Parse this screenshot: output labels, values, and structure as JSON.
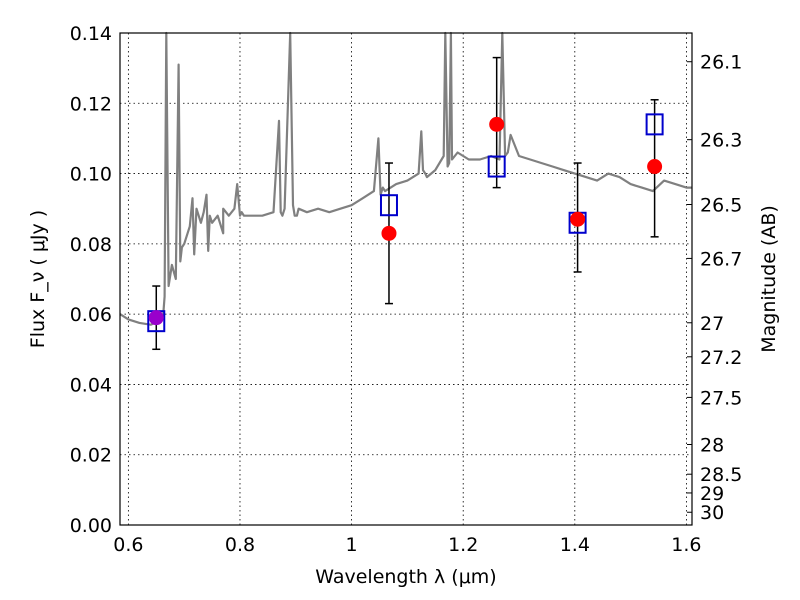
{
  "chart_data": {
    "type": "scatter",
    "xlabel": "Wavelength  λ (μm)",
    "ylabel": "Flux  F_ν  ( μJy )",
    "y2label": "Magnitude (AB)",
    "xlim": [
      0.585,
      1.61
    ],
    "ylim": [
      0.0,
      0.14
    ],
    "x_ticks": [
      "0.6",
      "0.8",
      "1",
      "1.2",
      "1.4",
      "1.6"
    ],
    "x_tick_values": [
      0.6,
      0.8,
      1.0,
      1.2,
      1.4,
      1.6
    ],
    "y_ticks": [
      "0.00",
      "0.02",
      "0.04",
      "0.06",
      "0.08",
      "0.10",
      "0.12",
      "0.14"
    ],
    "y_tick_values": [
      0.0,
      0.02,
      0.04,
      0.06,
      0.08,
      0.1,
      0.12,
      0.14
    ],
    "y2_ticks": [
      "26.1",
      "26.3",
      "26.5",
      "26.7",
      "27",
      "27.2",
      "27.5",
      "28",
      "28.5",
      "29",
      "30"
    ],
    "y2_tick_values": [
      26.1,
      26.3,
      26.5,
      26.7,
      27.0,
      27.2,
      27.5,
      28.0,
      28.5,
      29.0,
      30.0
    ],
    "grid": true,
    "colors": {
      "spectrum": "#808080",
      "model_points": "#ff0000",
      "observed_points": "#0000cc",
      "overlap_point": "#9900cc",
      "error_bars": "#000000"
    },
    "spectrum": {
      "x": [
        0.585,
        0.6,
        0.62,
        0.64,
        0.655,
        0.662,
        0.665,
        0.668,
        0.672,
        0.678,
        0.685,
        0.69,
        0.693,
        0.696,
        0.7,
        0.71,
        0.715,
        0.718,
        0.722,
        0.73,
        0.735,
        0.74,
        0.743,
        0.746,
        0.75,
        0.76,
        0.77,
        0.77,
        0.78,
        0.79,
        0.795,
        0.8,
        0.803,
        0.807,
        0.82,
        0.84,
        0.86,
        0.87,
        0.873,
        0.876,
        0.88,
        0.89,
        0.895,
        0.898,
        0.902,
        0.905,
        0.92,
        0.94,
        0.96,
        0.98,
        1.0,
        1.02,
        1.04,
        1.048,
        1.052,
        1.056,
        1.06,
        1.08,
        1.1,
        1.12,
        1.125,
        1.128,
        1.132,
        1.135,
        1.15,
        1.165,
        1.168,
        1.172,
        1.175,
        1.178,
        1.18,
        1.185,
        1.19,
        1.2,
        1.21,
        1.23,
        1.25,
        1.265,
        1.27,
        1.275,
        1.28,
        1.285,
        1.3,
        1.32,
        1.34,
        1.36,
        1.38,
        1.4,
        1.42,
        1.44,
        1.46,
        1.48,
        1.5,
        1.52,
        1.54,
        1.56,
        1.58,
        1.6,
        1.61
      ],
      "y": [
        0.06,
        0.0585,
        0.0575,
        0.057,
        0.058,
        0.059,
        0.065,
        0.14,
        0.068,
        0.074,
        0.07,
        0.131,
        0.075,
        0.079,
        0.08,
        0.085,
        0.093,
        0.077,
        0.09,
        0.086,
        0.089,
        0.094,
        0.078,
        0.088,
        0.086,
        0.088,
        0.083,
        0.09,
        0.088,
        0.09,
        0.097,
        0.088,
        0.089,
        0.088,
        0.088,
        0.088,
        0.089,
        0.115,
        0.089,
        0.088,
        0.09,
        0.14,
        0.091,
        0.088,
        0.088,
        0.09,
        0.089,
        0.09,
        0.089,
        0.09,
        0.091,
        0.093,
        0.095,
        0.11,
        0.094,
        0.096,
        0.095,
        0.097,
        0.098,
        0.1,
        0.112,
        0.101,
        0.1,
        0.099,
        0.101,
        0.105,
        0.14,
        0.102,
        0.103,
        0.14,
        0.104,
        0.105,
        0.106,
        0.105,
        0.104,
        0.104,
        0.105,
        0.104,
        0.14,
        0.105,
        0.106,
        0.111,
        0.105,
        0.104,
        0.103,
        0.102,
        0.101,
        0.1,
        0.099,
        0.098,
        0.1,
        0.099,
        0.097,
        0.096,
        0.095,
        0.098,
        0.097,
        0.096,
        0.096
      ]
    },
    "series": [
      {
        "x": [
          0.65,
          1.067,
          1.26,
          1.405,
          1.543
        ],
        "values": [
          0.058,
          0.091,
          0.102,
          0.086,
          0.114
        ],
        "marker": "square",
        "color": "#0000cc"
      },
      {
        "x": [
          0.65,
          1.067,
          1.26,
          1.405,
          1.543
        ],
        "values": [
          0.059,
          0.083,
          0.114,
          0.087,
          0.102
        ],
        "marker": "circle",
        "color": "#ff0000"
      }
    ],
    "error_bars": {
      "x": [
        0.65,
        1.067,
        1.26,
        1.405,
        1.543
      ],
      "low": [
        0.05,
        0.063,
        0.096,
        0.072,
        0.082
      ],
      "high": [
        0.068,
        0.103,
        0.133,
        0.103,
        0.121
      ]
    }
  }
}
